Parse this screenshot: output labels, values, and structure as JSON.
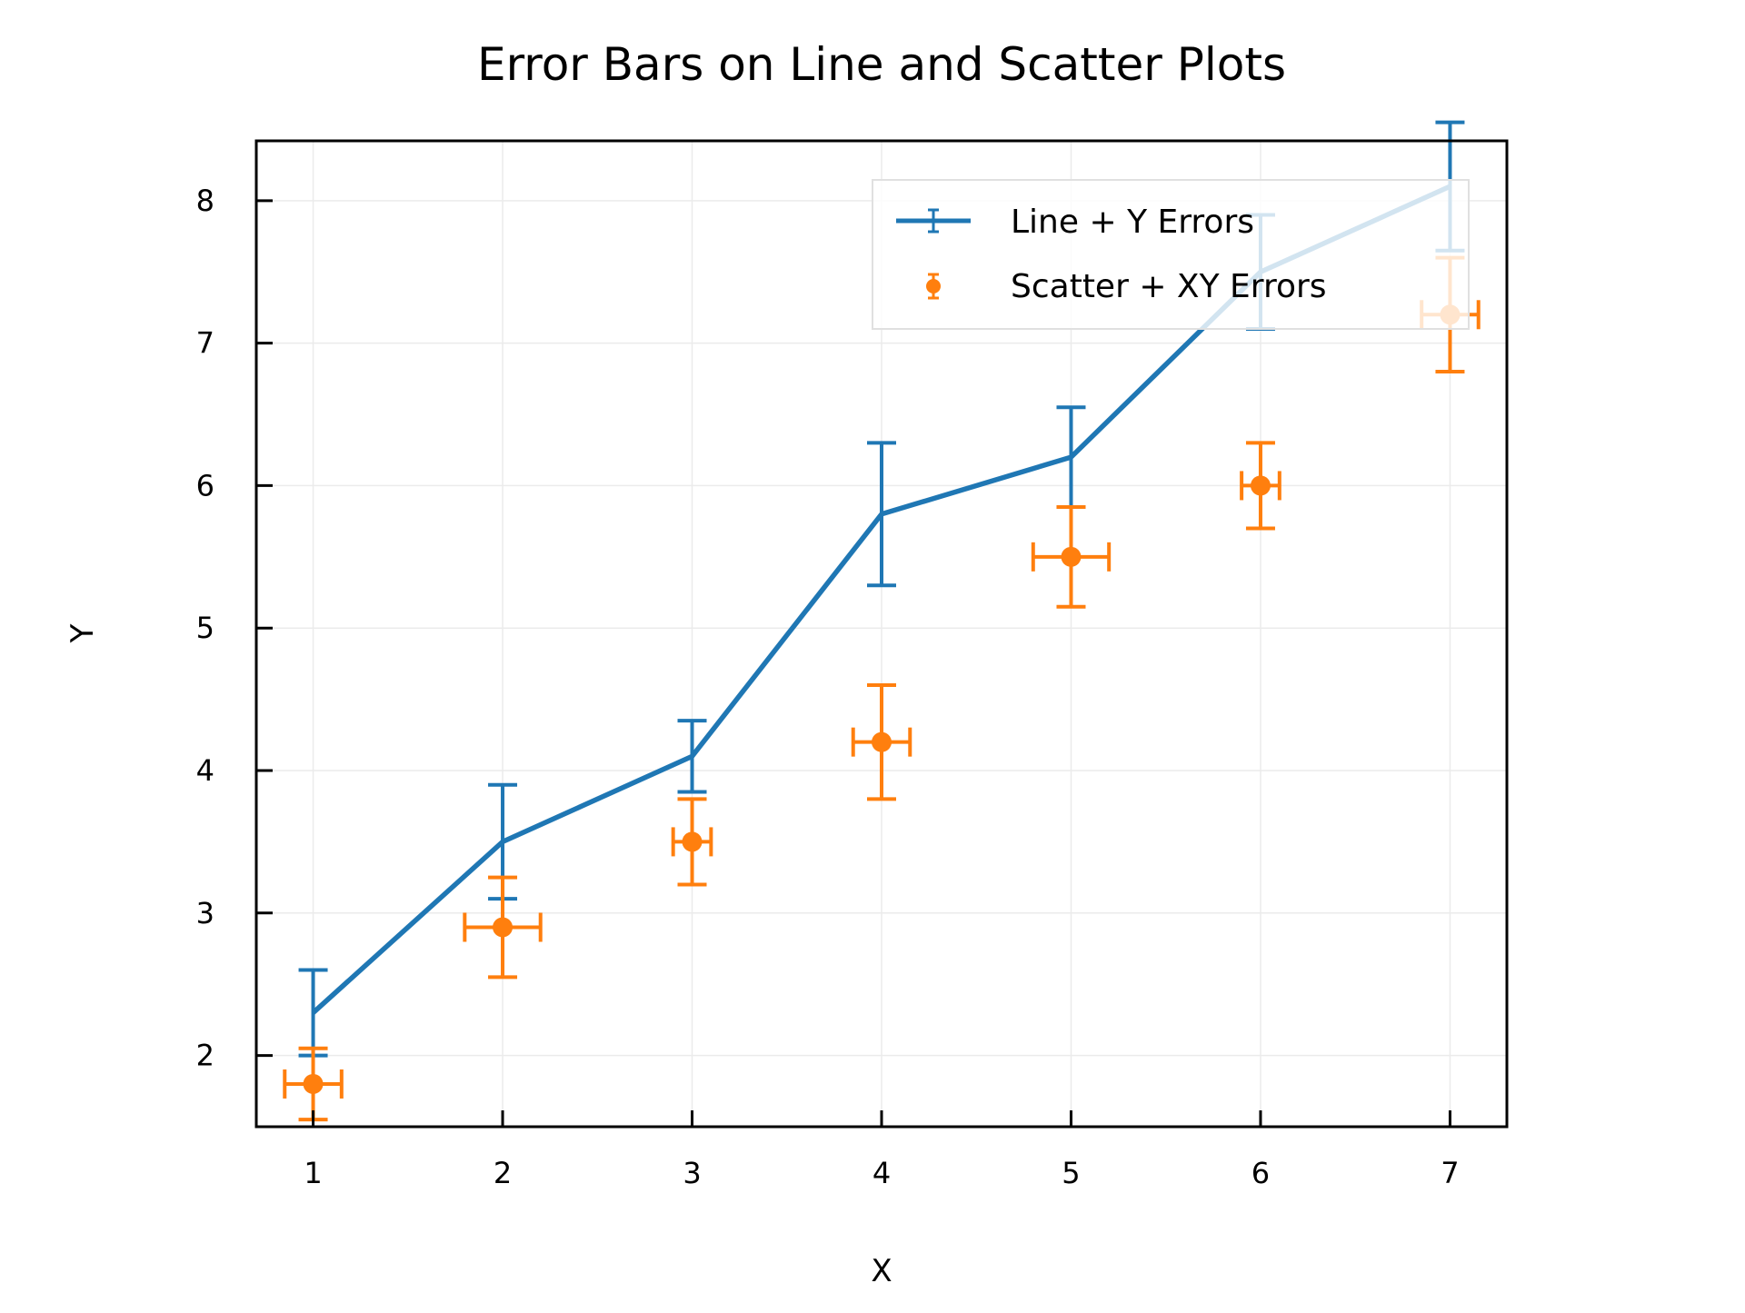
{
  "chart_data": {
    "type": "line",
    "title": "Error Bars on Line and Scatter Plots",
    "xlabel": "X",
    "ylabel": "Y",
    "xlim": [
      0.7,
      7.3
    ],
    "ylim": [
      1.5,
      8.42
    ],
    "xticks": [
      "1",
      "2",
      "3",
      "4",
      "5",
      "6",
      "7"
    ],
    "yticks": [
      "2",
      "3",
      "4",
      "5",
      "6",
      "7",
      "8"
    ],
    "grid": true,
    "legend_position": "top-right",
    "series": [
      {
        "name": "Line + Y Errors",
        "type": "line",
        "color": "#1f77b4",
        "x": [
          1,
          2,
          3,
          4,
          5,
          6,
          7
        ],
        "y": [
          2.3,
          3.5,
          4.1,
          5.8,
          6.2,
          7.5,
          8.1
        ],
        "yerr": [
          0.3,
          0.4,
          0.25,
          0.5,
          0.35,
          0.4,
          0.45
        ]
      },
      {
        "name": "Scatter + XY Errors",
        "type": "scatter",
        "color": "#ff7f0e",
        "x": [
          1,
          2,
          3,
          4,
          5,
          6,
          7
        ],
        "y": [
          1.8,
          2.9,
          3.5,
          4.2,
          5.5,
          6.0,
          7.2
        ],
        "xerr": [
          0.15,
          0.2,
          0.1,
          0.15,
          0.2,
          0.1,
          0.15
        ],
        "yerr": [
          0.25,
          0.35,
          0.3,
          0.4,
          0.35,
          0.3,
          0.4
        ]
      }
    ]
  }
}
